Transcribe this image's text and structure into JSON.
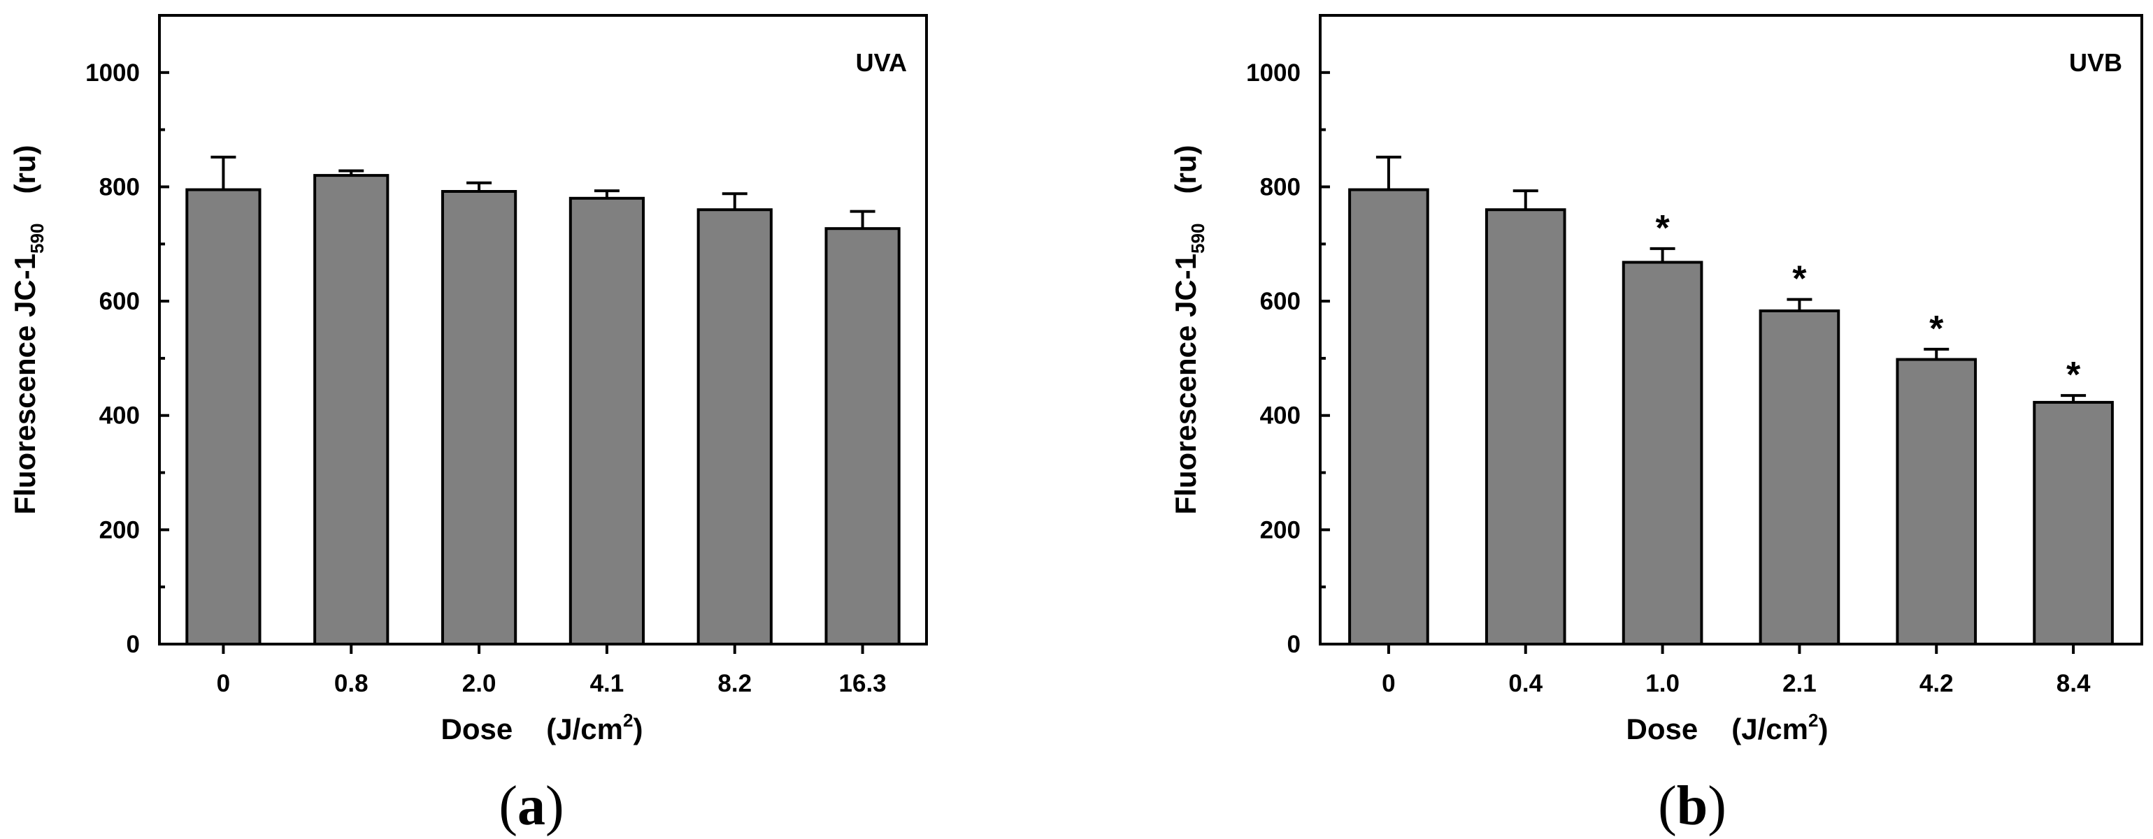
{
  "chart_data": [
    {
      "type": "bar",
      "panel": "a",
      "panel_label": "a",
      "annotation": "UVA",
      "categories": [
        "0",
        "0.8",
        "2.0",
        "4.1",
        "8.2",
        "16.3"
      ],
      "values": [
        795,
        820,
        792,
        780,
        760,
        727
      ],
      "errors": [
        57,
        8,
        15,
        13,
        28,
        30
      ],
      "significance": [
        "",
        "",
        "",
        "",
        "",
        ""
      ],
      "ylabel_main": "Fluorescence JC-1",
      "ylabel_sub": "590",
      "ylabel_unit": "(ru)",
      "xlabel_main": "Dose",
      "xlabel_unit": "(J/cm",
      "xlabel_sup": "2",
      "xlabel_close": ")",
      "ylim": [
        0,
        1100
      ],
      "yticks": [
        "0",
        "200",
        "400",
        "600",
        "800",
        "1000"
      ],
      "bar_color": "#808080"
    },
    {
      "type": "bar",
      "panel": "b",
      "panel_label": "b",
      "annotation": "UVB",
      "categories": [
        "0",
        "0.4",
        "1.0",
        "2.1",
        "4.2",
        "8.4"
      ],
      "values": [
        795,
        760,
        668,
        583,
        498,
        423
      ],
      "errors": [
        57,
        33,
        24,
        20,
        18,
        12
      ],
      "significance": [
        "",
        "",
        "*",
        "*",
        "*",
        "*"
      ],
      "ylabel_main": "Fluorescence JC-1",
      "ylabel_sub": "590",
      "ylabel_unit": "(ru)",
      "xlabel_main": "Dose",
      "xlabel_unit": "(J/cm",
      "xlabel_sup": "2",
      "xlabel_close": ")",
      "ylim": [
        0,
        1100
      ],
      "yticks": [
        "0",
        "200",
        "400",
        "600",
        "800",
        "1000"
      ],
      "bar_color": "#808080"
    }
  ]
}
